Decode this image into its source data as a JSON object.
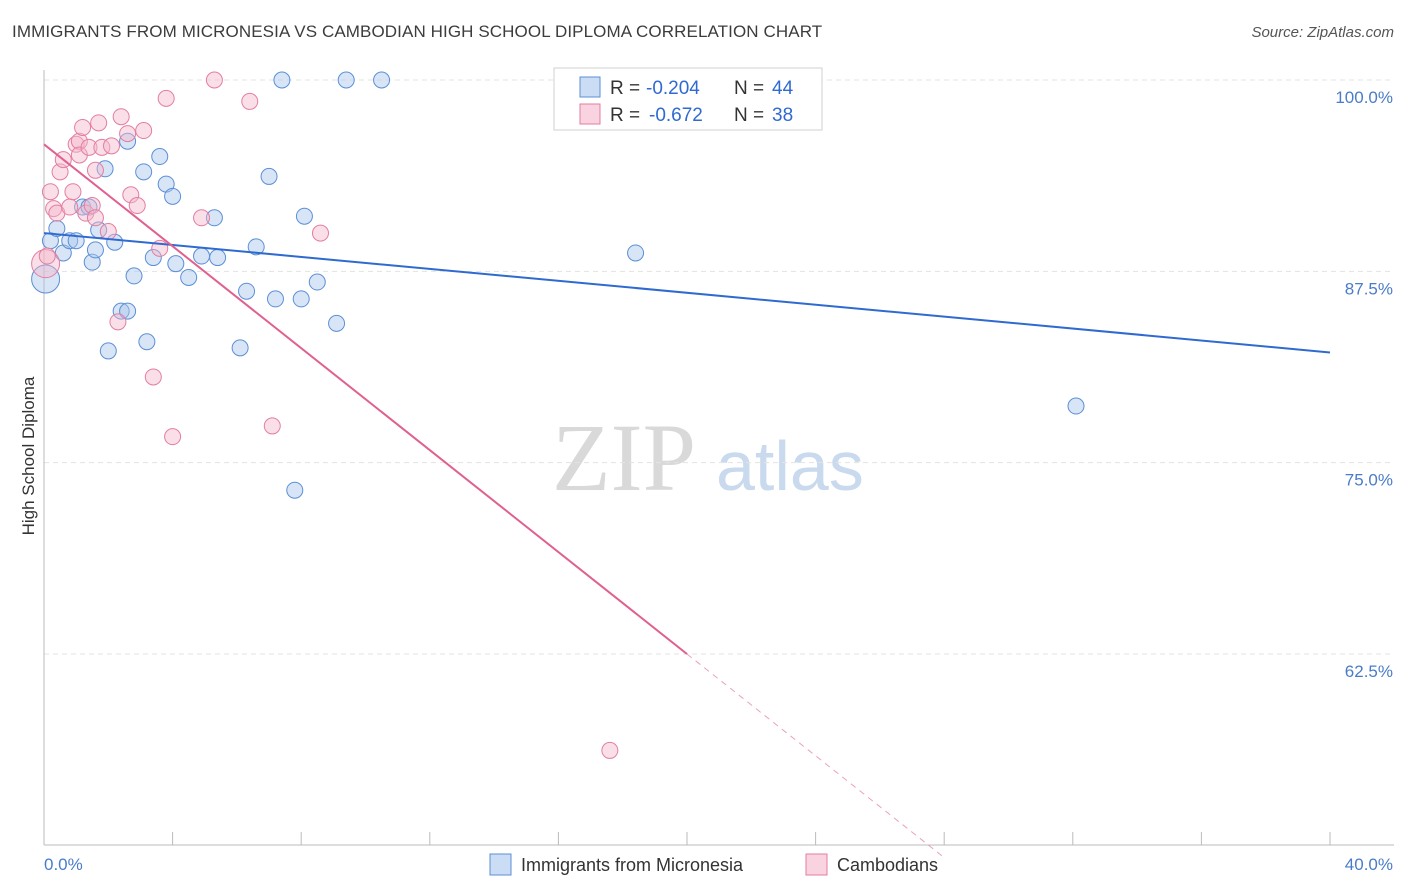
{
  "header": {
    "title": "IMMIGRANTS FROM MICRONESIA VS CAMBODIAN HIGH SCHOOL DIPLOMA CORRELATION CHART",
    "source": "Source: ZipAtlas.com"
  },
  "legend_box": {
    "row1": {
      "r_label": "R = ",
      "r_value": "-0.204",
      "n_label": "N = ",
      "n_value": "44"
    },
    "row2": {
      "r_label": "R = ",
      "r_value": "-0.672",
      "n_label": "N = ",
      "n_value": "38"
    }
  },
  "watermark": {
    "zip": "ZIP",
    "atlas": "atlas"
  },
  "colors": {
    "blue_fill": "#a9c6ec",
    "blue_stroke": "#5b8fd6",
    "blue_line": "#2f6ad0",
    "pink_fill": "#f5b8cb",
    "pink_stroke": "#e37ea0",
    "pink_line": "#e06090",
    "tick_text": "#4a7cc9",
    "grid": "#e3e3e3"
  },
  "chart_data": {
    "type": "scatter",
    "title": "IMMIGRANTS FROM MICRONESIA VS CAMBODIAN HIGH SCHOOL DIPLOMA CORRELATION CHART",
    "xlabel": "",
    "ylabel": "High School Diploma",
    "xlim": [
      0,
      40
    ],
    "ylim": [
      50,
      101
    ],
    "x_tick_labels": {
      "left": "0.0%",
      "right": "40.0%"
    },
    "y_ticks": [
      {
        "value": 100.0,
        "label": "100.0%"
      },
      {
        "value": 87.5,
        "label": "87.5%"
      },
      {
        "value": 75.0,
        "label": "75.0%"
      },
      {
        "value": 62.5,
        "label": "62.5%"
      }
    ],
    "grid": true,
    "legend_position": "top-center",
    "series": [
      {
        "name": "Immigrants from Micronesia",
        "color": "#5b8fd6",
        "trend": {
          "x": [
            0,
            40
          ],
          "y": [
            90.0,
            82.2
          ],
          "dashed_to": null
        },
        "points": [
          {
            "x": 0.05,
            "y": 87.0
          },
          {
            "x": 0.2,
            "y": 89.5
          },
          {
            "x": 0.4,
            "y": 90.3
          },
          {
            "x": 0.6,
            "y": 88.7
          },
          {
            "x": 0.8,
            "y": 89.5
          },
          {
            "x": 1.0,
            "y": 89.5
          },
          {
            "x": 1.2,
            "y": 91.7
          },
          {
            "x": 1.4,
            "y": 91.7
          },
          {
            "x": 1.5,
            "y": 88.1
          },
          {
            "x": 1.6,
            "y": 88.9
          },
          {
            "x": 1.7,
            "y": 90.2
          },
          {
            "x": 1.9,
            "y": 94.2
          },
          {
            "x": 2.0,
            "y": 82.3
          },
          {
            "x": 2.2,
            "y": 89.4
          },
          {
            "x": 2.4,
            "y": 84.9
          },
          {
            "x": 2.6,
            "y": 84.9
          },
          {
            "x": 2.6,
            "y": 96.0
          },
          {
            "x": 2.8,
            "y": 87.2
          },
          {
            "x": 3.1,
            "y": 94.0
          },
          {
            "x": 3.2,
            "y": 82.9
          },
          {
            "x": 3.4,
            "y": 88.4
          },
          {
            "x": 3.6,
            "y": 95.0
          },
          {
            "x": 3.8,
            "y": 93.2
          },
          {
            "x": 4.0,
            "y": 92.4
          },
          {
            "x": 4.1,
            "y": 88.0
          },
          {
            "x": 4.5,
            "y": 87.1
          },
          {
            "x": 4.9,
            "y": 88.5
          },
          {
            "x": 5.3,
            "y": 91.0
          },
          {
            "x": 5.4,
            "y": 88.4
          },
          {
            "x": 6.1,
            "y": 82.5
          },
          {
            "x": 6.3,
            "y": 86.2
          },
          {
            "x": 6.6,
            "y": 89.1
          },
          {
            "x": 7.0,
            "y": 93.7
          },
          {
            "x": 7.4,
            "y": 100.0
          },
          {
            "x": 7.2,
            "y": 85.7
          },
          {
            "x": 7.8,
            "y": 73.2
          },
          {
            "x": 8.0,
            "y": 85.7
          },
          {
            "x": 8.1,
            "y": 91.1
          },
          {
            "x": 8.5,
            "y": 86.8
          },
          {
            "x": 9.1,
            "y": 84.1
          },
          {
            "x": 9.4,
            "y": 100.0
          },
          {
            "x": 10.5,
            "y": 100.0
          },
          {
            "x": 18.4,
            "y": 88.7
          },
          {
            "x": 32.1,
            "y": 78.7
          }
        ]
      },
      {
        "name": "Cambodians",
        "color": "#e37ea0",
        "trend": {
          "x": [
            0,
            20
          ],
          "y": [
            95.8,
            62.5
          ],
          "dashed_to": {
            "x": 28.0,
            "y": 49.2
          }
        },
        "points": [
          {
            "x": 0.05,
            "y": 88.0
          },
          {
            "x": 0.2,
            "y": 92.7
          },
          {
            "x": 0.3,
            "y": 91.6
          },
          {
            "x": 0.4,
            "y": 91.3
          },
          {
            "x": 0.5,
            "y": 94.0
          },
          {
            "x": 0.6,
            "y": 94.8
          },
          {
            "x": 0.8,
            "y": 91.7
          },
          {
            "x": 0.9,
            "y": 92.7
          },
          {
            "x": 1.0,
            "y": 95.8
          },
          {
            "x": 1.1,
            "y": 96.0
          },
          {
            "x": 1.1,
            "y": 95.1
          },
          {
            "x": 1.2,
            "y": 96.9
          },
          {
            "x": 1.3,
            "y": 91.3
          },
          {
            "x": 1.4,
            "y": 95.6
          },
          {
            "x": 1.5,
            "y": 91.8
          },
          {
            "x": 1.6,
            "y": 94.1
          },
          {
            "x": 1.6,
            "y": 91.0
          },
          {
            "x": 1.7,
            "y": 97.2
          },
          {
            "x": 1.8,
            "y": 95.6
          },
          {
            "x": 2.0,
            "y": 90.1
          },
          {
            "x": 2.1,
            "y": 95.7
          },
          {
            "x": 2.3,
            "y": 84.2
          },
          {
            "x": 2.4,
            "y": 97.6
          },
          {
            "x": 2.6,
            "y": 96.5
          },
          {
            "x": 2.7,
            "y": 92.5
          },
          {
            "x": 2.9,
            "y": 91.8
          },
          {
            "x": 3.1,
            "y": 96.7
          },
          {
            "x": 3.4,
            "y": 80.6
          },
          {
            "x": 3.6,
            "y": 89.0
          },
          {
            "x": 3.8,
            "y": 98.8
          },
          {
            "x": 4.0,
            "y": 76.7
          },
          {
            "x": 4.9,
            "y": 91.0
          },
          {
            "x": 5.3,
            "y": 100.0
          },
          {
            "x": 6.4,
            "y": 98.6
          },
          {
            "x": 7.1,
            "y": 77.4
          },
          {
            "x": 8.6,
            "y": 90.0
          },
          {
            "x": 17.6,
            "y": 56.2
          },
          {
            "x": 0.1,
            "y": 88.5
          }
        ]
      }
    ]
  }
}
